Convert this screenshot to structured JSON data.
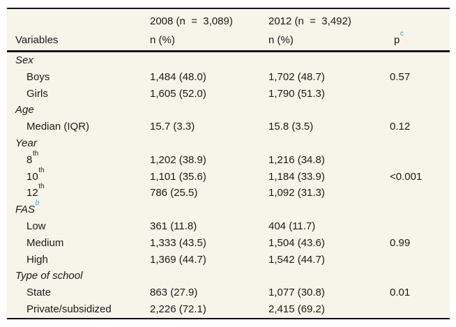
{
  "table": {
    "header": {
      "group_2008": "2008 (n  =  3,089)",
      "group_2012": "2012 (n  =  3,492)",
      "variables_label": "Variables",
      "n_pct_2008": "n (%)",
      "n_pct_2012": "n (%)",
      "p_label": "p",
      "p_sup": "c"
    },
    "sections": [
      {
        "label": "Sex",
        "sup": "",
        "rows": [
          {
            "label": "Boys",
            "sup": "",
            "n2008": "1,484 (48.0)",
            "n2012": "1,702 (48.7)",
            "p": "0.57"
          },
          {
            "label": "Girls",
            "sup": "",
            "n2008": "1,605 (52.0)",
            "n2012": "1,790 (51.3)",
            "p": ""
          }
        ]
      },
      {
        "label": "Age",
        "sup": "",
        "rows": [
          {
            "label": "Median (IQR)",
            "sup": "",
            "n2008": "15.7 (3.3)",
            "n2012": "15.8 (3.5)",
            "p": "0.12"
          }
        ]
      },
      {
        "label": "Year",
        "sup": "",
        "rows": [
          {
            "label": "8",
            "sup": "th",
            "n2008": "1,202 (38.9)",
            "n2012": "1,216 (34.8)",
            "p": ""
          },
          {
            "label": "10",
            "sup": "th",
            "n2008": "1,101 (35.6)",
            "n2012": "1,184 (33.9)",
            "p": "<0.001"
          },
          {
            "label": "12",
            "sup": "th",
            "n2008": "786 (25.5)",
            "n2012": "1,092 (31.3)",
            "p": ""
          }
        ]
      },
      {
        "label": "FAS",
        "sup": "b",
        "rows": [
          {
            "label": "Low",
            "sup": "",
            "n2008": "361 (11.8)",
            "n2012": "404 (11.7)",
            "p": ""
          },
          {
            "label": "Medium",
            "sup": "",
            "n2008": "1,333 (43.5)",
            "n2012": "1,504 (43.6)",
            "p": "0.99"
          },
          {
            "label": "High",
            "sup": "",
            "n2008": "1,369 (44.7)",
            "n2012": "1,542 (44.7)",
            "p": ""
          }
        ]
      },
      {
        "label": "Type of school",
        "sup": "",
        "rows": [
          {
            "label": "State",
            "sup": "",
            "n2008": "863 (27.9)",
            "n2012": "1,077 (30.8)",
            "p": "0.01"
          },
          {
            "label": "Private/subsidized",
            "sup": "",
            "n2008": "2,226 (72.1)",
            "n2012": "2,415 (69.2)",
            "p": ""
          }
        ]
      }
    ]
  },
  "colors": {
    "page_background": "#ffffff",
    "table_background": "#f7f4e9",
    "text": "#1a1a1a",
    "superscript_accent": "#3ba1d4",
    "border": "#111111"
  }
}
